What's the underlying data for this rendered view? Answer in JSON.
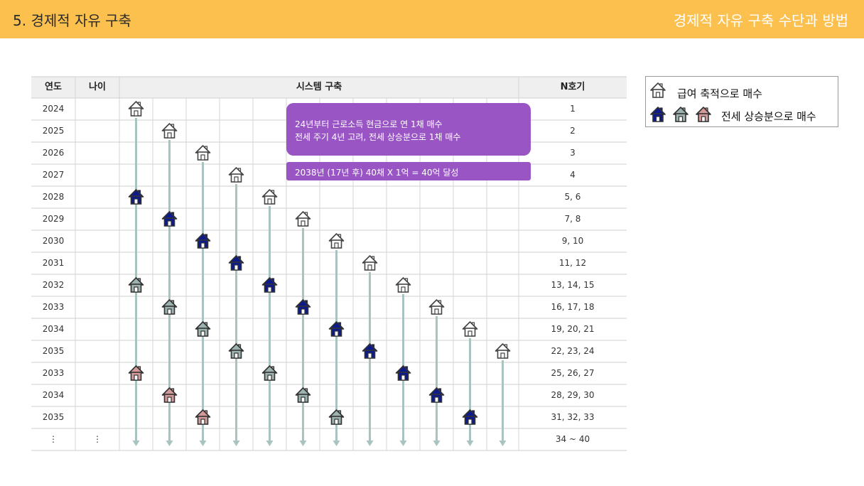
{
  "header": {
    "title": "5. 경제적 자유 구축",
    "subtitle": "경제적 자유 구축 수단과 방법"
  },
  "table": {
    "headers": {
      "year": "연도",
      "age": "나이",
      "system": "시스템 구축",
      "n": "N호기"
    },
    "rows": [
      {
        "year": "2024",
        "age": "",
        "n": "1"
      },
      {
        "year": "2025",
        "age": "",
        "n": "2"
      },
      {
        "year": "2026",
        "age": "",
        "n": "3"
      },
      {
        "year": "2027",
        "age": "",
        "n": "4"
      },
      {
        "year": "2028",
        "age": "",
        "n": "5, 6"
      },
      {
        "year": "2029",
        "age": "",
        "n": "7, 8"
      },
      {
        "year": "2030",
        "age": "",
        "n": "9, 10"
      },
      {
        "year": "2031",
        "age": "",
        "n": "11, 12"
      },
      {
        "year": "2032",
        "age": "",
        "n": "13, 14, 15"
      },
      {
        "year": "2033",
        "age": "",
        "n": "16, 17, 18"
      },
      {
        "year": "2034",
        "age": "",
        "n": "19, 20, 21"
      },
      {
        "year": "2035",
        "age": "",
        "n": "22, 23, 24"
      },
      {
        "year": "2033",
        "age": "",
        "n": "25, 26, 27"
      },
      {
        "year": "2034",
        "age": "",
        "n": "28, 29, 30"
      },
      {
        "year": "2035",
        "age": "",
        "n": "31, 32, 33"
      },
      {
        "year": "⋮",
        "age": "⋮",
        "n": "34 ~ 40"
      }
    ]
  },
  "legend": {
    "salary_label": "급여 축적으로 매수",
    "jeonse_label": "전세 상승분으로 매수"
  },
  "callouts": {
    "main_line1": "24년부터 근로소득 현금으로 연 1채 매수",
    "main_line2": "전세 주기 4년 고려, 전세 상승분으로 1채 매수",
    "goal": "2038년 (17년  후) 40채 X 1억 = 40억 달성"
  },
  "colors": {
    "header_bg": "#fbc04e",
    "callout_bg": "#9955c4",
    "arrow": "#a9c3c1",
    "house_blue": "#0d1a8c",
    "house_gray": "#9db3b0",
    "house_pink": "#d49a9a",
    "house_outline": "#ffffff"
  },
  "houses": [
    {
      "col": 0,
      "row": 0,
      "type": "outline"
    },
    {
      "col": 0,
      "row": 4,
      "type": "blue"
    },
    {
      "col": 0,
      "row": 8,
      "type": "gray"
    },
    {
      "col": 0,
      "row": 12,
      "type": "pink"
    },
    {
      "col": 1,
      "row": 1,
      "type": "outline"
    },
    {
      "col": 1,
      "row": 5,
      "type": "blue"
    },
    {
      "col": 1,
      "row": 9,
      "type": "gray"
    },
    {
      "col": 1,
      "row": 13,
      "type": "pink"
    },
    {
      "col": 2,
      "row": 2,
      "type": "outline"
    },
    {
      "col": 2,
      "row": 6,
      "type": "blue"
    },
    {
      "col": 2,
      "row": 10,
      "type": "gray"
    },
    {
      "col": 2,
      "row": 14,
      "type": "pink"
    },
    {
      "col": 3,
      "row": 3,
      "type": "outline"
    },
    {
      "col": 3,
      "row": 7,
      "type": "blue"
    },
    {
      "col": 3,
      "row": 11,
      "type": "gray"
    },
    {
      "col": 4,
      "row": 4,
      "type": "outline"
    },
    {
      "col": 4,
      "row": 8,
      "type": "blue"
    },
    {
      "col": 4,
      "row": 12,
      "type": "gray"
    },
    {
      "col": 5,
      "row": 5,
      "type": "outline"
    },
    {
      "col": 5,
      "row": 9,
      "type": "blue"
    },
    {
      "col": 5,
      "row": 13,
      "type": "gray"
    },
    {
      "col": 6,
      "row": 6,
      "type": "outline"
    },
    {
      "col": 6,
      "row": 10,
      "type": "blue"
    },
    {
      "col": 6,
      "row": 14,
      "type": "gray"
    },
    {
      "col": 7,
      "row": 7,
      "type": "outline"
    },
    {
      "col": 7,
      "row": 11,
      "type": "blue"
    },
    {
      "col": 8,
      "row": 8,
      "type": "outline"
    },
    {
      "col": 8,
      "row": 12,
      "type": "blue"
    },
    {
      "col": 9,
      "row": 9,
      "type": "outline"
    },
    {
      "col": 9,
      "row": 13,
      "type": "blue"
    },
    {
      "col": 10,
      "row": 10,
      "type": "outline"
    },
    {
      "col": 10,
      "row": 14,
      "type": "blue"
    },
    {
      "col": 11,
      "row": 11,
      "type": "outline"
    }
  ]
}
